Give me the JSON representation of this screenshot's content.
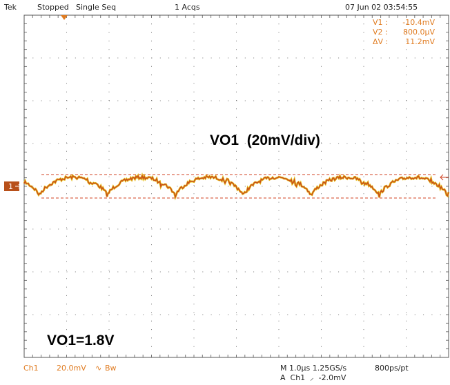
{
  "header": {
    "brand": "Tek",
    "state": "Stopped",
    "mode": "Single Seq",
    "acqs": "1 Acqs",
    "timestamp": "07 Jun 02 03:54:55"
  },
  "cursors": {
    "rows": [
      [
        "V1 :",
        "-10.4mV"
      ],
      [
        "V2 :",
        "800.0µV"
      ],
      [
        "ΔV :",
        "11.2mV"
      ]
    ]
  },
  "annotations": {
    "scale": "VO1  (20mV/div)",
    "level": "VO1=1.8V"
  },
  "channel_marker": "1",
  "footer": {
    "channel": "Ch1",
    "volts": "20.0mV",
    "coupling": "∿",
    "bw": "Bw",
    "timebase": "M 1.0µs 1.25GS/s",
    "resolution": "800ps/pt",
    "trigger": "A  Ch1  ⸝  -2.0mV"
  }
}
